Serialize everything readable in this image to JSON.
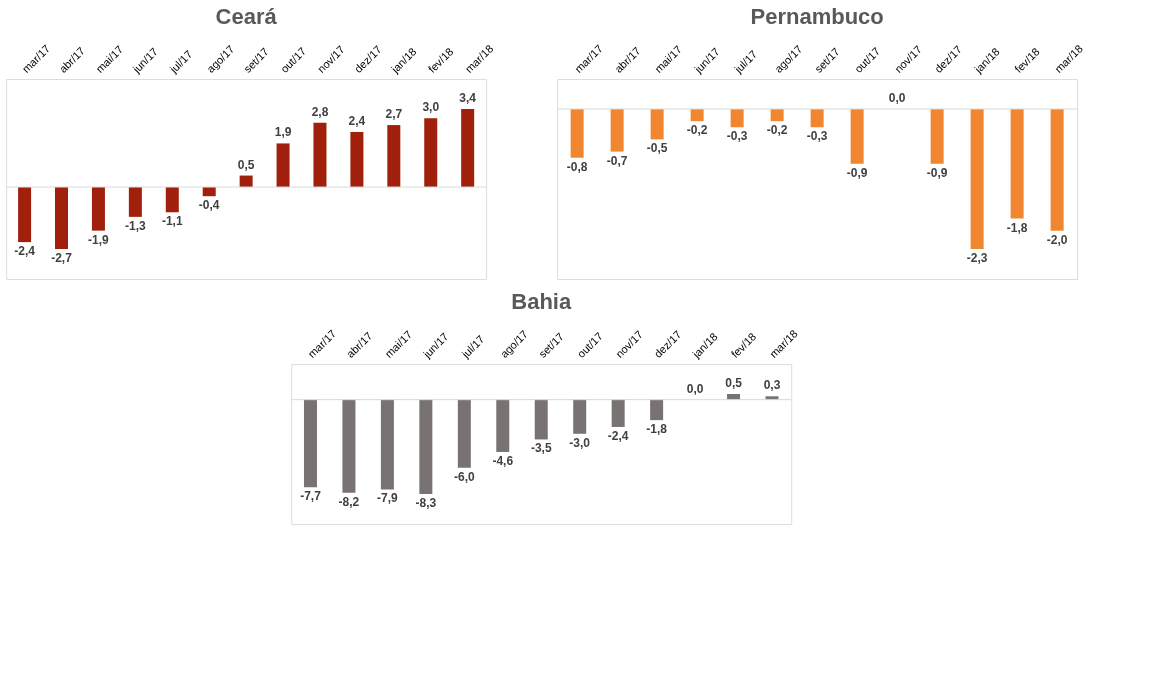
{
  "chart_data": [
    {
      "type": "bar",
      "title": "Ceará",
      "categories": [
        "mar/17",
        "abr/17",
        "mai/17",
        "jun/17",
        "jul/17",
        "ago/17",
        "set/17",
        "out/17",
        "nov/17",
        "dez/17",
        "jan/18",
        "fev/18",
        "mar/18"
      ],
      "values": [
        -2.4,
        -2.7,
        -1.9,
        -1.3,
        -1.1,
        -0.4,
        0.5,
        1.9,
        2.8,
        2.4,
        2.7,
        3.0,
        3.4
      ],
      "value_labels": [
        "-2,4",
        "-2,7",
        "-1,9",
        "-1,3",
        "-1,1",
        "-0,4",
        "0,5",
        "1,9",
        "2,8",
        "2,4",
        "2,7",
        "3,0",
        "3,4"
      ],
      "color": "#a0200c"
    },
    {
      "type": "bar",
      "title": "Pernambuco",
      "categories": [
        "mar/17",
        "abr/17",
        "mai/17",
        "jun/17",
        "jul/17",
        "ago/17",
        "set/17",
        "out/17",
        "nov/17",
        "dez/17",
        "jan/18",
        "fev/18",
        "mar/18"
      ],
      "values": [
        -0.8,
        -0.7,
        -0.5,
        -0.2,
        -0.3,
        -0.2,
        -0.3,
        -0.9,
        0.0,
        -0.9,
        -2.3,
        -1.8,
        -2.0
      ],
      "value_labels": [
        "-0,8",
        "-0,7",
        "-0,5",
        "-0,2",
        "-0,3",
        "-0,2",
        "-0,3",
        "-0,9",
        "0,0",
        "-0,9",
        "-2,3",
        "-1,8",
        "-2,0"
      ],
      "color": "#f0862f"
    },
    {
      "type": "bar",
      "title": "Bahia",
      "categories": [
        "mar/17",
        "abr/17",
        "mai/17",
        "jun/17",
        "jul/17",
        "ago/17",
        "set/17",
        "out/17",
        "nov/17",
        "dez/17",
        "jan/18",
        "fev/18",
        "mar/18"
      ],
      "values": [
        -7.7,
        -8.2,
        -7.9,
        -8.3,
        -6.0,
        -4.6,
        -3.5,
        -3.0,
        -2.4,
        -1.8,
        0.0,
        0.5,
        0.3
      ],
      "value_labels": [
        "-7,7",
        "-8,2",
        "-7,9",
        "-8,3",
        "-6,0",
        "-4,6",
        "-3,5",
        "-3,0",
        "-2,4",
        "-1,8",
        "0,0",
        "0,5",
        "0,3"
      ],
      "color": "#787372"
    }
  ]
}
